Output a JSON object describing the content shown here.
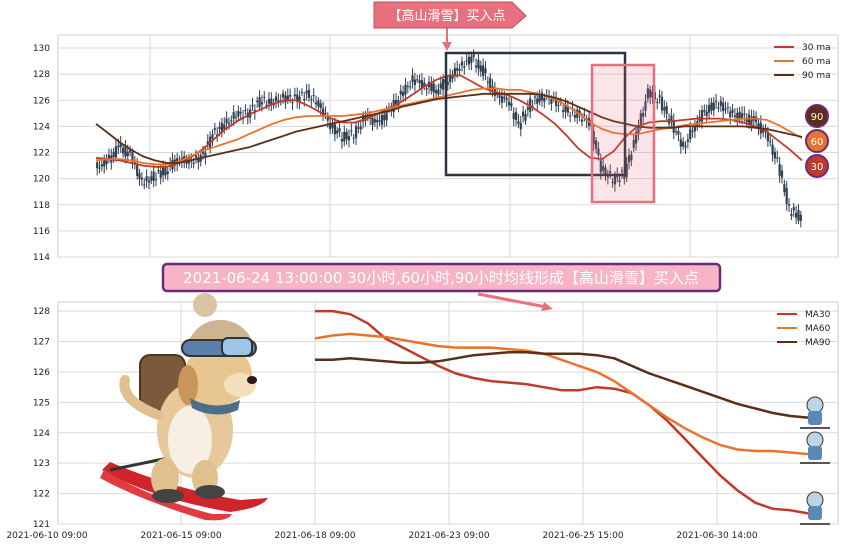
{
  "colors": {
    "ma30": "#c0392b",
    "ma60": "#e8742c",
    "ma90": "#5c2e16",
    "candle": "#2e3f52",
    "grid": "#d9d9d9",
    "box_dark": "#2b3340",
    "box_pink": "#e8707e",
    "banner_bg": "#e8707e",
    "caption_bg": "#f6b4c6",
    "caption_border": "#6a2a83"
  },
  "top_banner": "【高山滑雪】买入点",
  "caption": "2021-06-24 13:00:00 30小时,60小时,90小时均线形成【高山滑雪】买入点",
  "badges": [
    "90",
    "60",
    "30"
  ],
  "chart_data": [
    {
      "type": "candlestick",
      "ylim": [
        114,
        131
      ],
      "yticks": [
        114,
        116,
        118,
        120,
        122,
        124,
        126,
        128,
        130
      ],
      "legend": [
        "30 ma",
        "60 ma",
        "90 ma"
      ],
      "legend_position": "top-right",
      "grid": true,
      "close_series": [
        120.8,
        121.3,
        122.4,
        121.8,
        119.6,
        120.2,
        120.7,
        121.5,
        121.3,
        121.6,
        123.4,
        124.1,
        124.9,
        125.0,
        126.0,
        125.8,
        126.2,
        126.1,
        126.5,
        125.7,
        124.1,
        123.2,
        123.4,
        124.8,
        124.2,
        125.2,
        126.4,
        127.6,
        127.2,
        126.8,
        127.6,
        128.6,
        129.2,
        128.1,
        126.4,
        126.0,
        124.1,
        125.8,
        126.3,
        126.0,
        125.2,
        124.9,
        124.4,
        120.8,
        119.9,
        120.4,
        123.4,
        126.6,
        125.9,
        124.2,
        122.4,
        124.2,
        125.4,
        125.8,
        125.0,
        124.7,
        124.4,
        123.4,
        121.2,
        117.6,
        117.0
      ],
      "series": [
        {
          "name": "30 ma",
          "values": [
            121.6,
            121.5,
            121.4,
            121.2,
            121.0,
            120.9,
            120.9,
            121.2,
            121.6,
            122.2,
            123.0,
            123.8,
            124.4,
            124.9,
            125.3,
            125.7,
            126.0,
            126.0,
            125.6,
            125.1,
            124.6,
            124.3,
            124.3,
            124.6,
            125.0,
            125.4,
            125.9,
            126.5,
            127.1,
            127.6,
            127.9,
            127.9,
            127.4,
            126.9,
            126.6,
            126.4,
            126.0,
            125.5,
            124.9,
            124.2,
            123.3,
            122.3,
            121.6,
            121.5,
            122.1,
            123.2,
            124.0,
            124.3,
            124.4,
            124.4,
            124.5,
            124.6,
            124.6,
            124.6,
            124.5,
            124.3,
            124.0,
            123.6,
            122.9,
            122.2,
            121.4
          ]
        },
        {
          "name": "60 ma",
          "values": [
            121.4,
            121.5,
            121.5,
            121.4,
            121.2,
            121.1,
            121.1,
            121.3,
            121.7,
            122.1,
            122.4,
            122.7,
            123.0,
            123.4,
            123.8,
            124.2,
            124.5,
            124.7,
            124.8,
            124.8,
            124.8,
            124.8,
            124.9,
            125.0,
            125.2,
            125.4,
            125.6,
            125.8,
            126.0,
            126.2,
            126.4,
            126.6,
            126.8,
            126.9,
            126.9,
            126.8,
            126.8,
            126.6,
            126.4,
            126.1,
            125.6,
            125.0,
            124.3,
            123.8,
            123.5,
            123.4,
            123.4,
            123.6,
            123.8,
            123.9,
            124.1,
            124.2,
            124.3,
            124.4,
            124.5,
            124.6,
            124.6,
            124.5,
            124.1,
            123.6,
            123.1
          ]
        },
        {
          "name": "90 ma",
          "values": [
            124.2,
            123.5,
            122.8,
            122.2,
            121.7,
            121.4,
            121.2,
            121.2,
            121.4,
            121.6,
            121.8,
            122.0,
            122.2,
            122.4,
            122.7,
            123.0,
            123.3,
            123.6,
            123.8,
            124.0,
            124.2,
            124.4,
            124.6,
            124.8,
            125.0,
            125.2,
            125.5,
            125.7,
            125.9,
            126.1,
            126.2,
            126.3,
            126.4,
            126.5,
            126.5,
            126.5,
            126.5,
            126.5,
            126.4,
            126.2,
            125.9,
            125.5,
            125.1,
            124.7,
            124.4,
            124.2,
            124.0,
            123.9,
            123.9,
            123.9,
            124.0,
            124.0,
            124.0,
            124.0,
            124.0,
            124.0,
            123.9,
            123.8,
            123.6,
            123.4,
            123.2
          ]
        }
      ]
    },
    {
      "type": "line",
      "ylim": [
        121,
        128.3
      ],
      "yticks": [
        121,
        122,
        123,
        124,
        125,
        126,
        127,
        128
      ],
      "xticks": [
        "2021-06-10 09:00",
        "2021-06-15 09:00",
        "2021-06-18 09:00",
        "2021-06-23 09:00",
        "2021-06-25 15:00",
        "2021-06-30 14:00"
      ],
      "legend": [
        "MA30",
        "MA60",
        "MA90"
      ],
      "legend_position": "top-right",
      "grid": true,
      "series": [
        {
          "name": "MA30",
          "values": [
            128.0,
            128.0,
            127.9,
            127.6,
            127.1,
            126.8,
            126.5,
            126.2,
            125.95,
            125.8,
            125.7,
            125.65,
            125.6,
            125.5,
            125.4,
            125.4,
            125.5,
            125.45,
            125.3,
            124.9,
            124.4,
            123.8,
            123.2,
            122.6,
            122.1,
            121.7,
            121.5,
            121.45,
            121.35
          ]
        },
        {
          "name": "MA60",
          "values": [
            127.1,
            127.2,
            127.25,
            127.2,
            127.15,
            127.05,
            126.95,
            126.85,
            126.8,
            126.8,
            126.8,
            126.75,
            126.7,
            126.6,
            126.4,
            126.2,
            126.0,
            125.7,
            125.3,
            124.9,
            124.5,
            124.15,
            123.85,
            123.6,
            123.45,
            123.4,
            123.4,
            123.35,
            123.3
          ]
        },
        {
          "name": "MA90",
          "values": [
            126.4,
            126.4,
            126.45,
            126.4,
            126.35,
            126.3,
            126.3,
            126.35,
            126.45,
            126.55,
            126.6,
            126.65,
            126.65,
            126.6,
            126.6,
            126.6,
            126.55,
            126.45,
            126.2,
            125.95,
            125.75,
            125.55,
            125.35,
            125.15,
            124.95,
            124.8,
            124.65,
            124.55,
            124.5
          ]
        }
      ]
    }
  ]
}
